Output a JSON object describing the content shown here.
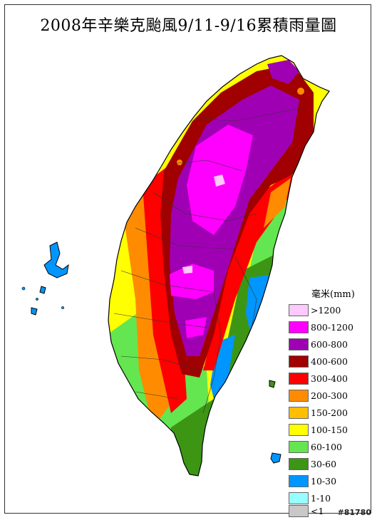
{
  "title": "2008年辛樂克颱風9/11-9/16累積雨量圖",
  "legend": {
    "unit": "毫米(mm)",
    "items": [
      {
        "label": ">1200",
        "color": "#ffc8ff"
      },
      {
        "label": "800-1200",
        "color": "#ff00ff"
      },
      {
        "label": "600-800",
        "color": "#a000b4"
      },
      {
        "label": "400-600",
        "color": "#a00000"
      },
      {
        "label": "300-400",
        "color": "#ff0000"
      },
      {
        "label": "200-300",
        "color": "#ff8c00"
      },
      {
        "label": "150-200",
        "color": "#ffbe00"
      },
      {
        "label": "100-150",
        "color": "#ffff00"
      },
      {
        "label": "60-100",
        "color": "#64e650"
      },
      {
        "label": "30-60",
        "color": "#3c9614"
      },
      {
        "label": "10-30",
        "color": "#0096ff"
      },
      {
        "label": "1-10",
        "color": "#96ffff"
      },
      {
        "label": "<1",
        "color": "#c8c8c8"
      }
    ]
  },
  "watermark": "#81780"
}
